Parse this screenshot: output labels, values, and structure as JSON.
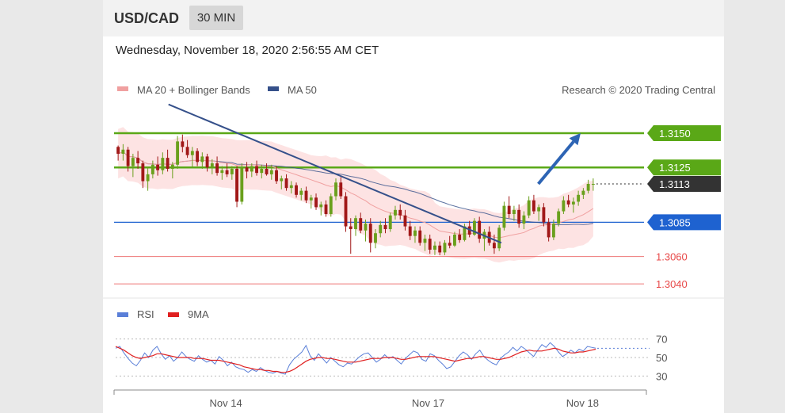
{
  "header": {
    "symbol": "USD/CAD",
    "timeframe": "30 MIN"
  },
  "datetime": "Wednesday, November 18, 2020 2:56:55 AM CET",
  "credit": "Research © 2020 Trading Central",
  "colors": {
    "green": "#5aa817",
    "blue": "#1e62d0",
    "red": "#e84a4a",
    "dark": "#333333",
    "bollinger": "#fde3e3",
    "ma20": "#f0a0a0",
    "ma50": "#35508a",
    "bull_candle": "#6aa01d",
    "bear_candle": "#a11818",
    "rsi": "#5a7fd8",
    "rsi_ma": "#e02020"
  },
  "chart_data": [
    {
      "type": "candlestick",
      "title": "USD/CAD",
      "legend": [
        "MA 20 + Bollinger Bands",
        "MA 50"
      ],
      "legend_position": "top-left",
      "ylim": [
        1.3032,
        1.3172
      ],
      "x_ticks": [
        "Nov 14",
        "Nov 17",
        "Nov 18"
      ],
      "levels": [
        {
          "label": "1.3150",
          "value": 1.315,
          "style": "resistance"
        },
        {
          "label": "1.3125",
          "value": 1.3125,
          "style": "resistance"
        },
        {
          "label": "1.3113",
          "value": 1.3113,
          "style": "last"
        },
        {
          "label": "1.3085",
          "value": 1.3085,
          "style": "pivot"
        },
        {
          "label": "1.3060",
          "value": 1.306,
          "style": "support"
        },
        {
          "label": "1.3040",
          "value": 1.304,
          "style": "support"
        }
      ],
      "trendline": {
        "from": [
          0.1,
          1.3171
        ],
        "to": [
          0.73,
          1.307
        ]
      },
      "target_arrow": {
        "from": [
          0.8,
          1.3113
        ],
        "to": [
          0.88,
          1.315
        ]
      },
      "candles": [
        [
          1.314,
          1.3141,
          1.313,
          1.3135
        ],
        [
          1.3135,
          1.3142,
          1.313,
          1.3138
        ],
        [
          1.3138,
          1.314,
          1.3122,
          1.3126
        ],
        [
          1.3126,
          1.3135,
          1.3118,
          1.3132
        ],
        [
          1.3132,
          1.3137,
          1.3124,
          1.3128
        ],
        [
          1.3128,
          1.313,
          1.311,
          1.3115
        ],
        [
          1.3115,
          1.3125,
          1.3108,
          1.312
        ],
        [
          1.312,
          1.313,
          1.3117,
          1.3127
        ],
        [
          1.3127,
          1.3133,
          1.3119,
          1.3123
        ],
        [
          1.3123,
          1.3136,
          1.312,
          1.3132
        ],
        [
          1.3132,
          1.3138,
          1.3122,
          1.3124
        ],
        [
          1.3124,
          1.3129,
          1.3117,
          1.3127
        ],
        [
          1.3127,
          1.3148,
          1.3124,
          1.3144
        ],
        [
          1.3144,
          1.3149,
          1.3136,
          1.314
        ],
        [
          1.314,
          1.3145,
          1.3132,
          1.3134
        ],
        [
          1.3134,
          1.314,
          1.3125,
          1.3137
        ],
        [
          1.3137,
          1.3139,
          1.3126,
          1.3129
        ],
        [
          1.3129,
          1.3136,
          1.3124,
          1.3133
        ],
        [
          1.3133,
          1.3135,
          1.3122,
          1.3125
        ],
        [
          1.3125,
          1.3131,
          1.312,
          1.3128
        ],
        [
          1.3128,
          1.3133,
          1.3119,
          1.3121
        ],
        [
          1.3121,
          1.3126,
          1.3116,
          1.3123
        ],
        [
          1.3123,
          1.3128,
          1.3118,
          1.312
        ],
        [
          1.312,
          1.3126,
          1.3116,
          1.3124
        ],
        [
          1.3124,
          1.3126,
          1.3096,
          1.31
        ],
        [
          1.31,
          1.3128,
          1.3098,
          1.3125
        ],
        [
          1.3125,
          1.3129,
          1.3117,
          1.3122
        ],
        [
          1.3122,
          1.3128,
          1.3118,
          1.3126
        ],
        [
          1.3126,
          1.313,
          1.3119,
          1.3121
        ],
        [
          1.3121,
          1.3127,
          1.3117,
          1.3124
        ],
        [
          1.3124,
          1.3128,
          1.3119,
          1.312
        ],
        [
          1.312,
          1.3127,
          1.3116,
          1.3123
        ],
        [
          1.3123,
          1.3126,
          1.3113,
          1.3115
        ],
        [
          1.3115,
          1.3119,
          1.3109,
          1.3117
        ],
        [
          1.3117,
          1.312,
          1.3108,
          1.311
        ],
        [
          1.311,
          1.3115,
          1.3106,
          1.3112
        ],
        [
          1.3112,
          1.3114,
          1.3103,
          1.3105
        ],
        [
          1.3105,
          1.311,
          1.3101,
          1.3108
        ],
        [
          1.3108,
          1.3111,
          1.3099,
          1.3101
        ],
        [
          1.3101,
          1.3105,
          1.3095,
          1.3103
        ],
        [
          1.3103,
          1.3106,
          1.3094,
          1.3096
        ],
        [
          1.3096,
          1.31,
          1.309,
          1.3098
        ],
        [
          1.3098,
          1.3101,
          1.3089,
          1.3091
        ],
        [
          1.3091,
          1.3106,
          1.3089,
          1.3104
        ],
        [
          1.3104,
          1.3117,
          1.3101,
          1.3114
        ],
        [
          1.3114,
          1.3118,
          1.3102,
          1.3104
        ],
        [
          1.3104,
          1.3107,
          1.3078,
          1.3082
        ],
        [
          1.3082,
          1.3088,
          1.3062,
          1.308
        ],
        [
          1.308,
          1.309,
          1.3075,
          1.3088
        ],
        [
          1.3088,
          1.3092,
          1.3077,
          1.3079
        ],
        [
          1.3079,
          1.3087,
          1.3071,
          1.3084
        ],
        [
          1.3084,
          1.3088,
          1.3063,
          1.307
        ],
        [
          1.307,
          1.308,
          1.3066,
          1.3077
        ],
        [
          1.3077,
          1.3086,
          1.3074,
          1.3083
        ],
        [
          1.3083,
          1.3088,
          1.3077,
          1.308
        ],
        [
          1.308,
          1.3092,
          1.3078,
          1.309
        ],
        [
          1.309,
          1.3097,
          1.3087,
          1.3094
        ],
        [
          1.3094,
          1.3098,
          1.3087,
          1.309
        ],
        [
          1.309,
          1.3094,
          1.3079,
          1.3082
        ],
        [
          1.3082,
          1.3086,
          1.3072,
          1.3075
        ],
        [
          1.3075,
          1.3082,
          1.307,
          1.3079
        ],
        [
          1.3079,
          1.3082,
          1.3068,
          1.307
        ],
        [
          1.307,
          1.3076,
          1.3064,
          1.3073
        ],
        [
          1.3073,
          1.3076,
          1.3062,
          1.3065
        ],
        [
          1.3065,
          1.3071,
          1.3061,
          1.3068
        ],
        [
          1.3068,
          1.3071,
          1.3061,
          1.3063
        ],
        [
          1.3063,
          1.3072,
          1.3061,
          1.307
        ],
        [
          1.307,
          1.3075,
          1.3066,
          1.3068
        ],
        [
          1.3068,
          1.3078,
          1.3067,
          1.3076
        ],
        [
          1.3076,
          1.308,
          1.307,
          1.3072
        ],
        [
          1.3072,
          1.3084,
          1.3071,
          1.3082
        ],
        [
          1.3082,
          1.3086,
          1.3074,
          1.3076
        ],
        [
          1.3076,
          1.3088,
          1.3075,
          1.3086
        ],
        [
          1.3086,
          1.3089,
          1.307,
          1.3073
        ],
        [
          1.3073,
          1.308,
          1.3064,
          1.3078
        ],
        [
          1.3078,
          1.3082,
          1.3068,
          1.307
        ],
        [
          1.307,
          1.3076,
          1.3062,
          1.3066
        ],
        [
          1.3066,
          1.3083,
          1.3064,
          1.3081
        ],
        [
          1.3081,
          1.31,
          1.3079,
          1.3097
        ],
        [
          1.3097,
          1.3104,
          1.3088,
          1.3091
        ],
        [
          1.3091,
          1.3097,
          1.3086,
          1.3094
        ],
        [
          1.3094,
          1.3098,
          1.3081,
          1.3084
        ],
        [
          1.3084,
          1.3093,
          1.308,
          1.309
        ],
        [
          1.309,
          1.3104,
          1.3088,
          1.3101
        ],
        [
          1.3101,
          1.3105,
          1.3091,
          1.3093
        ],
        [
          1.3093,
          1.3098,
          1.3086,
          1.3096
        ],
        [
          1.3096,
          1.3099,
          1.3082,
          1.3085
        ],
        [
          1.3085,
          1.3088,
          1.3071,
          1.3074
        ],
        [
          1.3074,
          1.3087,
          1.3072,
          1.3084
        ],
        [
          1.3084,
          1.3095,
          1.3082,
          1.3093
        ],
        [
          1.3093,
          1.3104,
          1.3091,
          1.3101
        ],
        [
          1.3101,
          1.3105,
          1.3096,
          1.3098
        ],
        [
          1.3098,
          1.3103,
          1.3092,
          1.31
        ],
        [
          1.31,
          1.3108,
          1.3097,
          1.3105
        ],
        [
          1.3105,
          1.311,
          1.3102,
          1.3108
        ],
        [
          1.3108,
          1.3116,
          1.3106,
          1.3113
        ],
        [
          1.3113,
          1.3117,
          1.3108,
          1.3113
        ]
      ]
    },
    {
      "type": "line",
      "title": "RSI",
      "legend": [
        "RSI",
        "9MA"
      ],
      "legend_position": "top-left",
      "ylim": [
        20,
        80
      ],
      "y_ticks": [
        30,
        50,
        70
      ],
      "series": [
        {
          "name": "RSI",
          "values": [
            60,
            62,
            55,
            49,
            44,
            41,
            47,
            55,
            50,
            58,
            62,
            54,
            48,
            52,
            46,
            50,
            56,
            51,
            48,
            46,
            52,
            48,
            45,
            47,
            43,
            51,
            47,
            41,
            45,
            40,
            38,
            37,
            34,
            37,
            35,
            39,
            36,
            34,
            33,
            35,
            33,
            32,
            42,
            48,
            52,
            56,
            63,
            52,
            47,
            54,
            49,
            44,
            50,
            46,
            42,
            40,
            44,
            43,
            47,
            51,
            54,
            55,
            50,
            45,
            48,
            53,
            49,
            51,
            47,
            43,
            49,
            53,
            57,
            55,
            48,
            46,
            54,
            52,
            47,
            43,
            38,
            40,
            46,
            52,
            56,
            53,
            48,
            54,
            58,
            51,
            47,
            44,
            42,
            49,
            53,
            56,
            61,
            57,
            62,
            59,
            55,
            51,
            58,
            64,
            61,
            66,
            62,
            56,
            51,
            54,
            58,
            55,
            59,
            57,
            62,
            61,
            60
          ]
        },
        {
          "name": "9MA",
          "values": [
            62,
            60,
            58,
            55,
            52,
            50,
            49,
            50,
            51,
            52,
            54,
            54,
            53,
            52,
            51,
            50,
            50,
            50,
            50,
            49,
            49,
            49,
            48,
            47,
            47,
            47,
            46,
            45,
            44,
            43,
            42,
            40,
            39,
            38,
            37,
            37,
            36,
            36,
            35,
            35,
            34,
            34,
            35,
            37,
            40,
            43,
            46,
            48,
            49,
            50,
            50,
            49,
            49,
            48,
            47,
            46,
            45,
            45,
            45,
            46,
            47,
            48,
            49,
            49,
            49,
            50,
            50,
            50,
            49,
            48,
            48,
            49,
            50,
            51,
            51,
            51,
            51,
            51,
            50,
            49,
            48,
            47,
            46,
            47,
            48,
            49,
            49,
            50,
            51,
            51,
            50,
            49,
            48,
            48,
            49,
            50,
            52,
            54,
            56,
            57,
            58,
            57,
            57,
            57,
            58,
            59,
            60,
            59,
            57,
            56,
            55,
            55,
            56,
            56,
            57,
            58,
            59
          ]
        }
      ]
    }
  ]
}
